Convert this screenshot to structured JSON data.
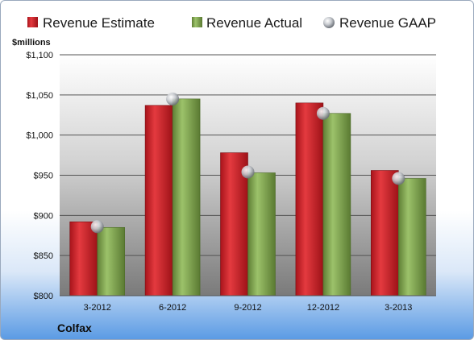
{
  "chart_data": {
    "type": "bar",
    "categories": [
      "3-2012",
      "6-2012",
      "9-2012",
      "12-2012",
      "3-2013"
    ],
    "series": [
      {
        "name": "Revenue Estimate",
        "values": [
          892,
          1037,
          978,
          1040,
          956
        ],
        "color": "#d7202a"
      },
      {
        "name": "Revenue Actual",
        "values": [
          885,
          1045,
          953,
          1027,
          946
        ],
        "color": "#7fa34f"
      },
      {
        "name": "Revenue GAAP",
        "values": [
          886,
          1045,
          954,
          1027,
          946
        ],
        "color": "#c0c4ca",
        "marker": "sphere"
      }
    ],
    "ylabel": "$millions",
    "ylim": [
      800,
      1100
    ],
    "yticks": [
      "$800",
      "$850",
      "$900",
      "$950",
      "$1,000",
      "$1,050",
      "$1,100"
    ],
    "ytick_values": [
      800,
      850,
      900,
      950,
      1000,
      1050,
      1100
    ],
    "grid": true,
    "legend_position": "top",
    "company": "Colfax"
  }
}
